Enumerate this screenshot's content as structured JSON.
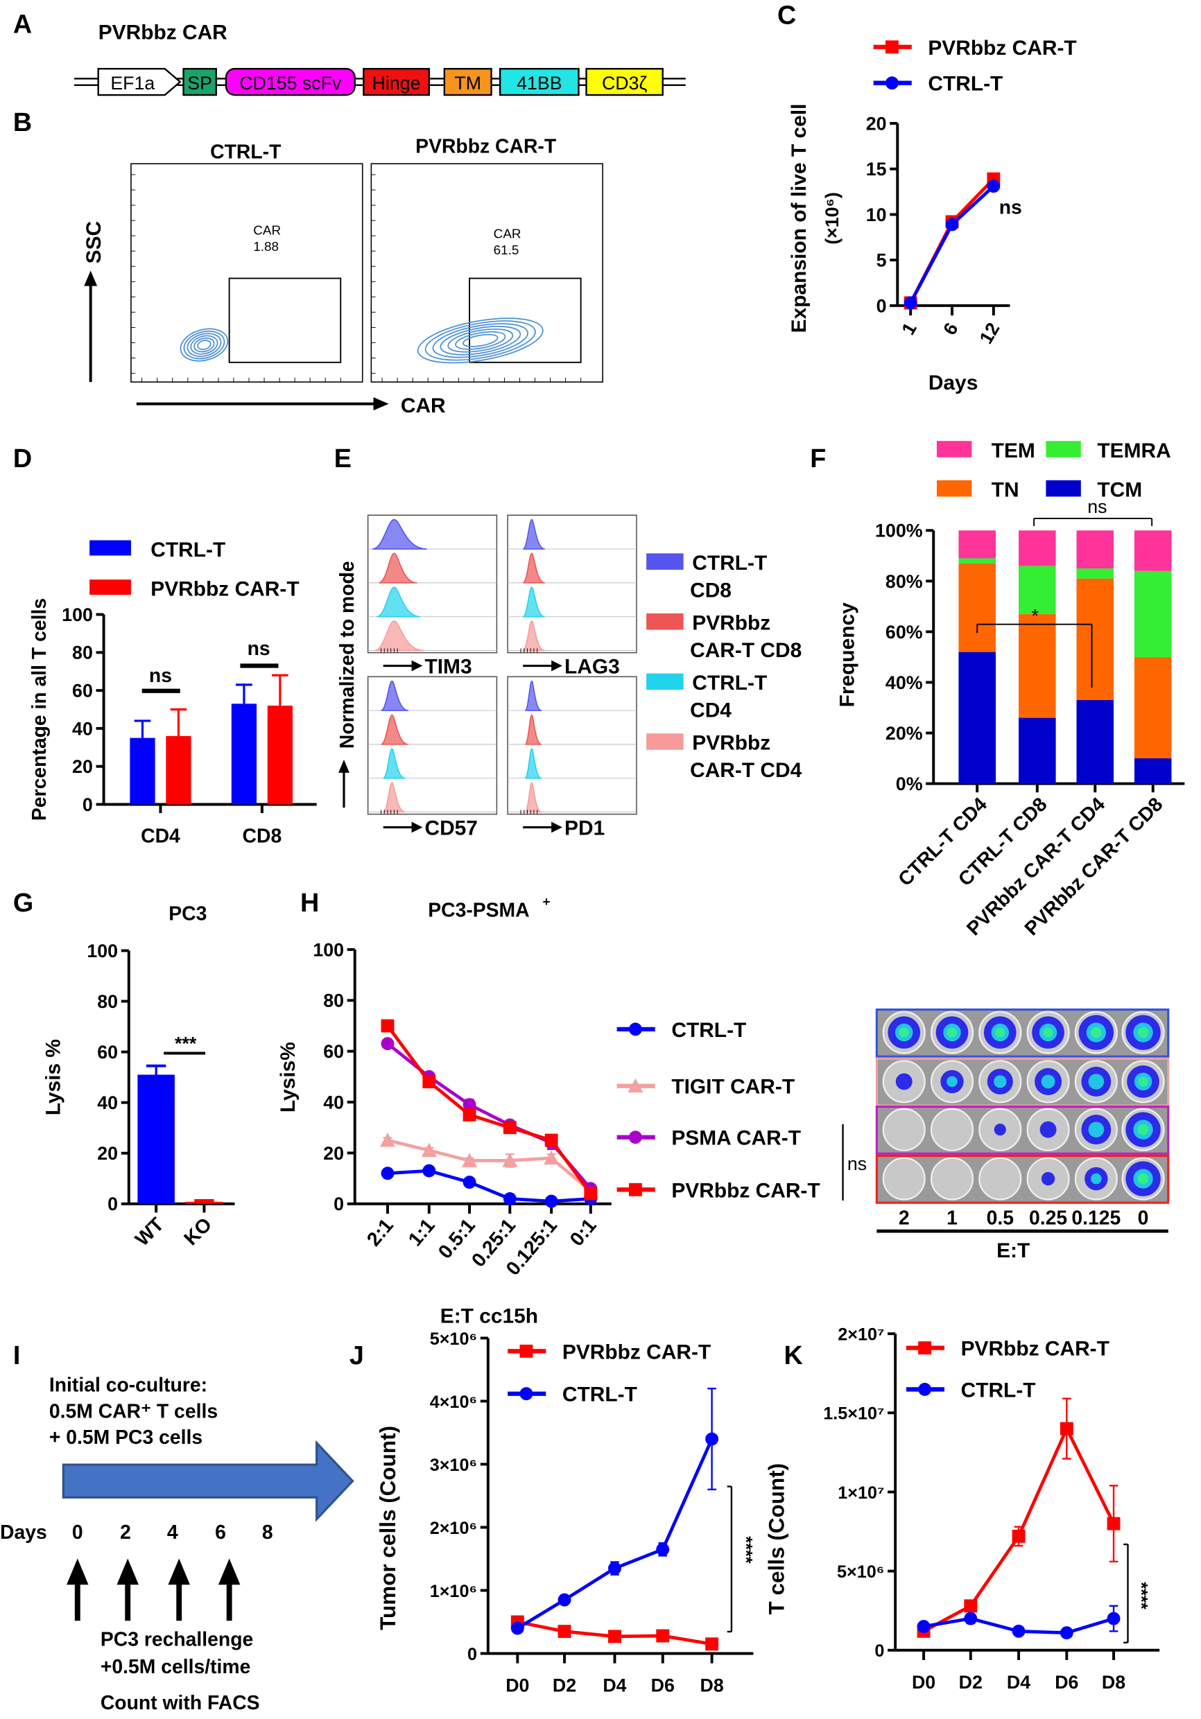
{
  "panels": {
    "A": {
      "letter": "A",
      "title": "PVRbbz CAR",
      "construct": [
        {
          "label": "EF1a",
          "color": "#ffffff"
        },
        {
          "label": "SP",
          "color": "#1aa36b"
        },
        {
          "label": "CD155 scFv",
          "color": "#ff00ff"
        },
        {
          "label": "Hinge",
          "color": "#ee1111"
        },
        {
          "label": "TM",
          "color": "#f7941d"
        },
        {
          "label": "41BB",
          "color": "#22e5e5"
        },
        {
          "label": "CD3ζ",
          "color": "#ffff00"
        }
      ]
    },
    "B": {
      "letter": "B",
      "y_axis": "SSC",
      "x_axis": "CAR",
      "contour_color": "#4a8fd8",
      "plots": [
        {
          "title": "CTRL-T",
          "gate_label": "CAR",
          "gate_value": "1.88"
        },
        {
          "title": "PVRbbz CAR-T",
          "gate_label": "CAR",
          "gate_value": "61.5"
        }
      ]
    },
    "C": {
      "letter": "C"
    },
    "D": {
      "letter": "D"
    },
    "E": {
      "letter": "E",
      "y_axis": "Normalized to mode",
      "markers": [
        "TIM3",
        "LAG3",
        "CD57",
        "PD1"
      ],
      "legend": [
        {
          "line1": "CTRL-T",
          "line2": "CD8",
          "color": "#5555ee"
        },
        {
          "line1": "PVRbbz",
          "line2": "CAR-T CD8",
          "color": "#ee5555"
        },
        {
          "line1": "CTRL-T",
          "line2": "CD4",
          "color": "#22d3ee"
        },
        {
          "line1": "PVRbbz",
          "line2": "CAR-T CD4",
          "color": "#f79a9a"
        }
      ]
    },
    "F": {
      "letter": "F"
    },
    "G": {
      "letter": "G"
    },
    "H": {
      "letter": "H",
      "imaging": {
        "xlabel": "E:T",
        "ratios": [
          "2",
          "1",
          "0.5",
          "0.25",
          "0.125",
          "0"
        ],
        "annotation": "ns",
        "rows": [
          {
            "group": "CTRL-T",
            "border": "#3355dd",
            "signal": [
              0.9,
              0.9,
              0.9,
              0.9,
              1.0,
              1.0
            ]
          },
          {
            "group": "TIGIT CAR-T",
            "border": "#f0a0a0",
            "signal": [
              0.3,
              0.55,
              0.65,
              0.7,
              0.8,
              0.9
            ]
          },
          {
            "group": "PSMA CAR-T",
            "border": "#bb22bb",
            "signal": [
              0,
              0,
              0.12,
              0.3,
              0.8,
              1.0
            ]
          },
          {
            "group": "PVRbbz CAR-T",
            "border": "#ee2222",
            "signal": [
              0,
              0,
              0,
              0.18,
              0.55,
              1.0
            ]
          }
        ]
      }
    },
    "I": {
      "letter": "I",
      "initial": [
        "Initial co-culture:",
        "0.5M CAR⁺ T cells",
        "+ 0.5M PC3 cells"
      ],
      "days_label": "Days",
      "days": [
        "0",
        "2",
        "4",
        "6",
        "8"
      ],
      "rechallenge": [
        "PC3 rechallenge",
        "+0.5M cells/time",
        "Count with FACS"
      ],
      "arrow_color": "#4472c4"
    },
    "J": {
      "letter": "J"
    },
    "K": {
      "letter": "K"
    }
  },
  "chart_data": [
    {
      "panel": "C",
      "type": "line",
      "xlabel": "Days",
      "ylabel": "Expansion of live T cell",
      "ylabel_unit": "(×10⁶)",
      "categories": [
        "1",
        "6",
        "12"
      ],
      "ylim": [
        0,
        20
      ],
      "yticks": [
        0,
        5,
        10,
        15,
        20
      ],
      "ytick_labels": [
        "0",
        "5",
        "10",
        "15",
        "20"
      ],
      "series": [
        {
          "name": "PVRbbz CAR-T",
          "color": "#ff0000",
          "marker": "square",
          "values": [
            0.3,
            9.2,
            13.9
          ],
          "err": [
            0.1,
            0.3,
            0.4
          ]
        },
        {
          "name": "CTRL-T",
          "color": "#0000ff",
          "marker": "circle",
          "values": [
            0.3,
            8.9,
            13.1
          ],
          "err": [
            0.1,
            0.3,
            0.4
          ]
        }
      ],
      "annotations": [
        "ns"
      ],
      "legend": "top"
    },
    {
      "panel": "D",
      "type": "bar",
      "ylabel": "Percentage in all T cells",
      "categories": [
        "CD4",
        "CD8"
      ],
      "ylim": [
        0,
        100
      ],
      "yticks": [
        0,
        20,
        40,
        60,
        80,
        100
      ],
      "ytick_labels": [
        "0",
        "20",
        "40",
        "60",
        "80",
        "100"
      ],
      "series": [
        {
          "name": "CTRL-T",
          "color": "#0000ff",
          "values": [
            35,
            53
          ],
          "err": [
            9,
            10
          ]
        },
        {
          "name": "PVRbbz CAR-T",
          "color": "#ff0000",
          "values": [
            36,
            52
          ],
          "err": [
            14,
            16
          ]
        }
      ],
      "annotations": [
        "ns",
        "ns"
      ],
      "legend": "top"
    },
    {
      "panel": "F",
      "type": "stacked-bar",
      "ylabel": "Frequency",
      "categories": [
        "CTRL-T CD4",
        "CTRL-T CD8",
        "PVRbbz CAR-T CD4",
        "PVRbbz CAR-T CD8"
      ],
      "ylim": [
        0,
        100
      ],
      "yticks": [
        0,
        20,
        40,
        60,
        80,
        100
      ],
      "ytick_labels": [
        "0%",
        "20%",
        "40%",
        "60%",
        "80%",
        "100%"
      ],
      "series": [
        {
          "name": "TCM",
          "color": "#0000cc",
          "values": [
            52,
            26,
            33,
            10
          ],
          "err": [
            6,
            5,
            4,
            2
          ]
        },
        {
          "name": "TN",
          "color": "#ff6600",
          "values": [
            35,
            41,
            48,
            40
          ],
          "err": [
            3,
            4,
            2,
            3
          ]
        },
        {
          "name": "TEMRA",
          "color": "#33ee33",
          "values": [
            2,
            19,
            4,
            34
          ],
          "err": [
            2,
            4,
            2,
            4
          ]
        },
        {
          "name": "TEM",
          "color": "#ff3399",
          "values": [
            11,
            14,
            15,
            16
          ]
        }
      ],
      "legend_order": [
        "TEM",
        "TEMRA",
        "TN",
        "TCM"
      ],
      "annotations": [
        "ns",
        "*"
      ],
      "legend": "top"
    },
    {
      "panel": "G",
      "type": "bar",
      "title": "PC3",
      "ylabel": "Lysis %",
      "categories": [
        "WT",
        "KO"
      ],
      "ylim": [
        0,
        100
      ],
      "yticks": [
        0,
        20,
        40,
        60,
        80,
        100
      ],
      "ytick_labels": [
        "0",
        "20",
        "40",
        "60",
        "80",
        "100"
      ],
      "series": [
        {
          "color": "#0000ff",
          "values": [
            51,
            0.8
          ],
          "err": [
            3.5,
            0.5
          ],
          "colors": [
            "#0000ff",
            "#ff0000"
          ]
        }
      ],
      "annotations": [
        "***"
      ]
    },
    {
      "panel": "H",
      "type": "line",
      "title": "PC3-PSMA",
      "title_sup": "+",
      "xlabel": "E:T cc15h",
      "ylabel": "Lysis%",
      "categories": [
        "2:1",
        "1:1",
        "0.5:1",
        "0.25:1",
        "0.125:1",
        "0:1"
      ],
      "ylim": [
        0,
        100
      ],
      "yticks": [
        0,
        20,
        40,
        60,
        80,
        100
      ],
      "ytick_labels": [
        "0",
        "20",
        "40",
        "60",
        "80",
        "100"
      ],
      "series": [
        {
          "name": "CTRL-T",
          "color": "#0000ff",
          "marker": "circle",
          "values": [
            12,
            13,
            8.5,
            2,
            1,
            2
          ],
          "err": [
            0.8,
            0.8,
            0.8,
            0.5,
            0.5,
            1
          ]
        },
        {
          "name": "TIGIT CAR-T",
          "color": "#f4a0a0",
          "marker": "triangle",
          "values": [
            25,
            21,
            17,
            17,
            18,
            5
          ],
          "err": [
            1,
            1,
            1,
            2.5,
            1.5,
            1
          ]
        },
        {
          "name": "PSMA CAR-T",
          "color": "#aa00cc",
          "marker": "circle",
          "values": [
            63,
            50,
            39,
            31,
            24,
            6
          ],
          "err": [
            1,
            1.5,
            2,
            1.5,
            2.5,
            1
          ]
        },
        {
          "name": "PVRbbz CAR-T",
          "color": "#ff0000",
          "marker": "square",
          "values": [
            70,
            48,
            35,
            30,
            25,
            4
          ],
          "err": [
            1.5,
            1.5,
            2,
            2,
            1.5,
            1
          ]
        }
      ],
      "legend": "right"
    },
    {
      "panel": "J",
      "type": "line",
      "ylabel": "Tumor cells (Count)",
      "categories": [
        "D0",
        "D2",
        "D4",
        "D6",
        "D8"
      ],
      "ylim": [
        0,
        5000000
      ],
      "yticks": [
        0,
        1000000,
        2000000,
        3000000,
        4000000,
        5000000
      ],
      "ytick_labels": [
        "0",
        "1×10⁶",
        "2×10⁶",
        "3×10⁶",
        "4×10⁶",
        "5×10⁶"
      ],
      "series": [
        {
          "name": "PVRbbz CAR-T",
          "color": "#ff0000",
          "marker": "square",
          "values": [
            500000,
            350000,
            270000,
            280000,
            150000
          ],
          "err": [
            60000,
            40000,
            30000,
            30000,
            30000
          ]
        },
        {
          "name": "CTRL-T",
          "color": "#0000ff",
          "marker": "circle",
          "values": [
            400000,
            850000,
            1350000,
            1650000,
            3400000
          ],
          "err": [
            40000,
            50000,
            100000,
            100000,
            800000
          ]
        }
      ],
      "annotations": [
        "****"
      ],
      "legend": "top"
    },
    {
      "panel": "K",
      "type": "line",
      "ylabel": "T cells  (Count)",
      "categories": [
        "D0",
        "D2",
        "D4",
        "D6",
        "D8"
      ],
      "ylim": [
        0,
        20000000
      ],
      "yticks": [
        0,
        5000000,
        10000000,
        15000000,
        20000000
      ],
      "ytick_labels": [
        "0",
        "5×10⁶",
        "1×10⁷",
        "1.5×10⁷",
        "2×10⁷"
      ],
      "series": [
        {
          "name": "PVRbbz CAR-T",
          "color": "#ff0000",
          "marker": "square",
          "values": [
            1200000,
            2800000,
            7200000,
            14000000,
            8000000
          ],
          "err": [
            300000,
            300000,
            600000,
            1900000,
            2400000
          ]
        },
        {
          "name": "CTRL-T",
          "color": "#0000ff",
          "marker": "circle",
          "values": [
            1500000,
            2000000,
            1200000,
            1100000,
            2000000
          ],
          "err": [
            200000,
            300000,
            200000,
            200000,
            800000
          ]
        }
      ],
      "annotations": [
        "****"
      ],
      "legend": "top"
    }
  ]
}
